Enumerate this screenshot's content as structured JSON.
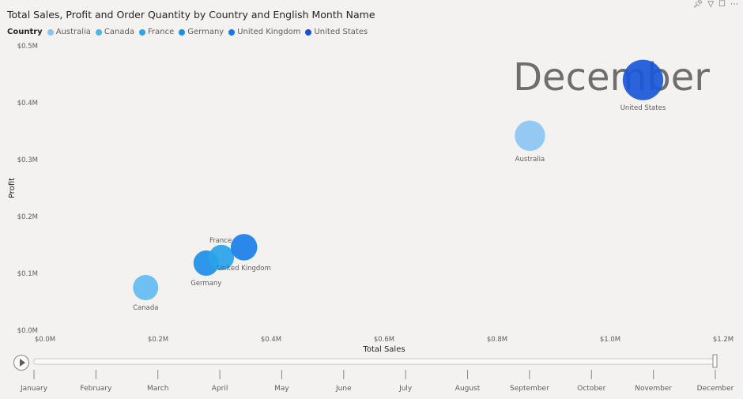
{
  "title": "Total Sales, Profit and Order Quantity by Country and English Month Name",
  "header_icons": [
    "pin-icon",
    "filter-icon",
    "focus-mode-icon",
    "more-options-icon"
  ],
  "legend": {
    "title": "Country",
    "items": [
      {
        "name": "Australia",
        "color": "#89c3f4"
      },
      {
        "name": "Canada",
        "color": "#4fb2f0"
      },
      {
        "name": "France",
        "color": "#2ea3ea"
      },
      {
        "name": "Germany",
        "color": "#1a8fe3"
      },
      {
        "name": "United Kingdom",
        "color": "#1778e6"
      },
      {
        "name": "United States",
        "color": "#1650d6"
      }
    ]
  },
  "chart_data": {
    "type": "scatter",
    "title": "Total Sales, Profit and Order Quantity by Country and English Month Name",
    "xlabel": "Total Sales",
    "ylabel": "Profit",
    "xlim": [
      0,
      1.2
    ],
    "ylim": [
      0,
      0.5
    ],
    "x_ticks": [
      "$0.0M",
      "$0.2M",
      "$0.4M",
      "$0.6M",
      "$0.8M",
      "$1.0M",
      "$1.2M"
    ],
    "y_ticks": [
      "$0.0M",
      "$0.1M",
      "$0.2M",
      "$0.3M",
      "$0.4M",
      "$0.5M"
    ],
    "play_axis_value": "December",
    "points": [
      {
        "country": "Canada",
        "x": 0.178,
        "y": 0.075,
        "size": 1,
        "color": "#63bcf3",
        "label": "Canada"
      },
      {
        "country": "Germany",
        "x": 0.285,
        "y": 0.118,
        "size": 1,
        "color": "#1e8fe8",
        "label": "Germany"
      },
      {
        "country": "France",
        "x": 0.312,
        "y": 0.128,
        "size": 1,
        "color": "#29a3ec",
        "label": "France"
      },
      {
        "country": "United Kingdom",
        "x": 0.352,
        "y": 0.146,
        "size": 1.05,
        "color": "#1a7ee8",
        "label": "United Kingdom"
      },
      {
        "country": "Australia",
        "x": 0.858,
        "y": 0.342,
        "size": 1.2,
        "color": "#8cc5f4",
        "label": "Australia"
      },
      {
        "country": "United States",
        "x": 1.058,
        "y": 0.44,
        "size": 1.6,
        "color": "#1a58d8",
        "label": "United States"
      }
    ]
  },
  "play_axis": {
    "months": [
      "January",
      "February",
      "March",
      "April",
      "May",
      "June",
      "July",
      "August",
      "September",
      "October",
      "November",
      "December"
    ],
    "current": "December"
  }
}
